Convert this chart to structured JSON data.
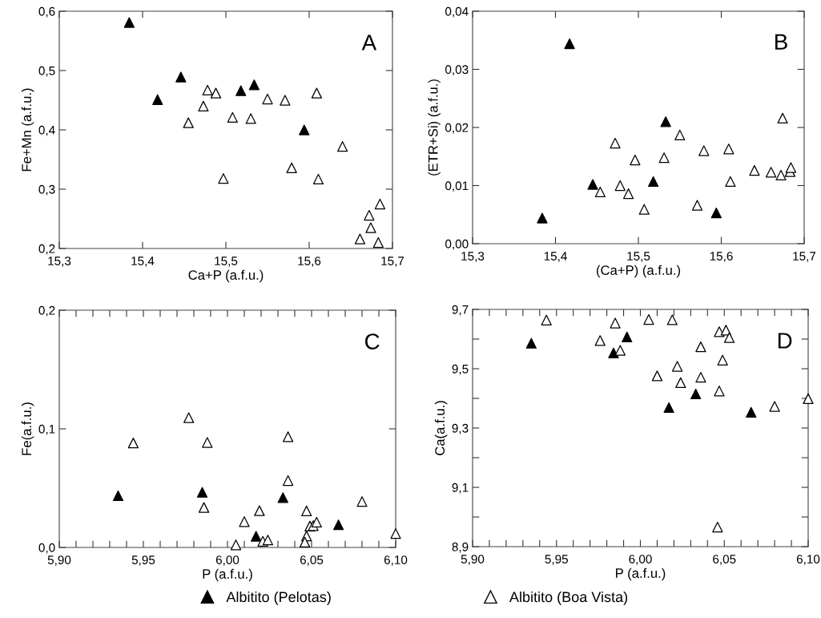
{
  "chart_data": [
    {
      "type": "scatter",
      "annotations": [
        "A"
      ],
      "xlabel": "Ca+P (a.f.u.)",
      "ylabel": "Fe+Mn (a.f.u.)",
      "marker": "triangle",
      "legend": "bottom",
      "xlim": [
        15.3,
        15.7
      ],
      "xticks": [
        {
          "value": 15.3,
          "label": "15,3"
        },
        {
          "value": 15.4,
          "label": "15,4"
        },
        {
          "value": 15.5,
          "label": "15,5"
        },
        {
          "value": 15.6,
          "label": "15,6"
        },
        {
          "value": 15.7,
          "label": "15,7"
        }
      ],
      "ylim": [
        0.2,
        0.6
      ],
      "yticks": [
        {
          "value": 0.2,
          "label": "0,2"
        },
        {
          "value": 0.3,
          "label": "0,3"
        },
        {
          "value": 0.4,
          "label": "0,4"
        },
        {
          "value": 0.5,
          "label": "0,5"
        },
        {
          "value": 0.6,
          "label": "0,6"
        }
      ],
      "series": [
        {
          "name": "Albitito (Pelotas)",
          "color": "#000000",
          "x": [
            15.384,
            15.418,
            15.446,
            15.518,
            15.534,
            15.594
          ],
          "values": [
            0.581,
            0.451,
            0.489,
            0.466,
            0.476,
            0.4
          ]
        },
        {
          "name": "Albitito (Boa Vista)",
          "color": "#ffffff",
          "x": [
            15.455,
            15.473,
            15.478,
            15.488,
            15.497,
            15.508,
            15.53,
            15.55,
            15.571,
            15.579,
            15.609,
            15.611,
            15.64,
            15.661,
            15.672,
            15.674,
            15.683,
            15.685
          ],
          "values": [
            0.412,
            0.44,
            0.467,
            0.462,
            0.318,
            0.421,
            0.419,
            0.452,
            0.45,
            0.336,
            0.462,
            0.317,
            0.372,
            0.216,
            0.256,
            0.235,
            0.21,
            0.275
          ]
        }
      ]
    },
    {
      "type": "scatter",
      "annotations": [
        "B"
      ],
      "xlabel": "(Ca+P) (a.f.u.)",
      "ylabel": "(ETR+Si) (a.f.u.)",
      "marker": "triangle",
      "legend": false,
      "xlim": [
        15.3,
        15.7
      ],
      "xticks": [
        {
          "value": 15.3,
          "label": "15,3"
        },
        {
          "value": 15.4,
          "label": "15,4"
        },
        {
          "value": 15.5,
          "label": "15,5"
        },
        {
          "value": 15.6,
          "label": "15,6"
        },
        {
          "value": 15.7,
          "label": "15,7"
        }
      ],
      "ylim": [
        0.0,
        0.04
      ],
      "yticks": [
        {
          "value": 0.0,
          "label": "0,00"
        },
        {
          "value": 0.01,
          "label": "0,01"
        },
        {
          "value": 0.02,
          "label": "0,02"
        },
        {
          "value": 0.03,
          "label": "0,03"
        },
        {
          "value": 0.04,
          "label": "0,04"
        }
      ],
      "series": [
        {
          "color": "#000000",
          "x": [
            15.384,
            15.417,
            15.445,
            15.518,
            15.533,
            15.594
          ],
          "values": [
            0.0044,
            0.0344,
            0.0102,
            0.0107,
            0.021,
            0.0053
          ]
        },
        {
          "color": "#ffffff",
          "x": [
            15.454,
            15.472,
            15.478,
            15.488,
            15.496,
            15.507,
            15.531,
            15.55,
            15.571,
            15.579,
            15.609,
            15.611,
            15.64,
            15.66,
            15.672,
            15.674,
            15.683,
            15.684
          ],
          "values": [
            0.0089,
            0.0173,
            0.01,
            0.0086,
            0.0144,
            0.0059,
            0.0148,
            0.0187,
            0.0066,
            0.016,
            0.0163,
            0.0107,
            0.0126,
            0.0123,
            0.0118,
            0.0216,
            0.0124,
            0.0131
          ]
        }
      ]
    },
    {
      "type": "scatter",
      "annotations": [
        "C"
      ],
      "xlabel": "P (a.f.u.)",
      "ylabel": "Fe(a.f.u.)",
      "marker": "triangle",
      "legend": false,
      "xlim": [
        5.9,
        6.1
      ],
      "xticks": [
        {
          "value": 5.9,
          "label": "5,90"
        },
        {
          "value": 5.91,
          "label": null
        },
        {
          "value": 5.92,
          "label": null
        },
        {
          "value": 5.93,
          "label": null
        },
        {
          "value": 5.94,
          "label": null
        },
        {
          "value": 5.95,
          "label": "5,95"
        },
        {
          "value": 5.96,
          "label": null
        },
        {
          "value": 5.97,
          "label": null
        },
        {
          "value": 5.98,
          "label": null
        },
        {
          "value": 5.99,
          "label": null
        },
        {
          "value": 6.0,
          "label": "6,00"
        },
        {
          "value": 6.01,
          "label": null
        },
        {
          "value": 6.02,
          "label": null
        },
        {
          "value": 6.03,
          "label": null
        },
        {
          "value": 6.04,
          "label": null
        },
        {
          "value": 6.05,
          "label": "6,05"
        },
        {
          "value": 6.06,
          "label": null
        },
        {
          "value": 6.07,
          "label": null
        },
        {
          "value": 6.08,
          "label": null
        },
        {
          "value": 6.09,
          "label": null
        },
        {
          "value": 6.1,
          "label": "6,10"
        }
      ],
      "ylim": [
        0.0,
        0.2
      ],
      "yticks": [
        {
          "value": 0.0,
          "label": "0,0"
        },
        {
          "value": 0.1,
          "label": "0,1"
        },
        {
          "value": 0.2,
          "label": "0,2"
        }
      ],
      "series": [
        {
          "color": "#000000",
          "x": [
            5.935,
            5.985,
            6.017,
            6.033,
            6.066
          ],
          "values": [
            0.0436,
            0.0465,
            0.0094,
            0.042,
            0.0191
          ]
        },
        {
          "color": "#ffffff",
          "x": [
            5.944,
            5.977,
            5.988,
            5.986,
            6.005,
            6.01,
            6.019,
            6.021,
            6.024,
            6.036,
            6.036,
            6.047,
            6.047,
            6.046,
            6.049,
            6.051,
            6.053,
            6.08,
            6.1
          ],
          "values": [
            0.0881,
            0.1094,
            0.0885,
            0.0337,
            0.0022,
            0.0218,
            0.031,
            0.0052,
            0.0063,
            0.0933,
            0.0564,
            0.0308,
            0.0097,
            0.0045,
            0.018,
            0.0184,
            0.0213,
            0.0387,
            0.0117
          ]
        }
      ]
    },
    {
      "type": "scatter",
      "annotations": [
        "D"
      ],
      "xlabel": "P (a.f.u.)",
      "ylabel": "Ca(a.f.u.)",
      "marker": "triangle",
      "xlim": [
        5.9,
        6.1
      ],
      "xticks": [
        {
          "value": 5.9,
          "label": "5,90"
        },
        {
          "value": 5.91,
          "label": null
        },
        {
          "value": 5.92,
          "label": null
        },
        {
          "value": 5.93,
          "label": null
        },
        {
          "value": 5.94,
          "label": null
        },
        {
          "value": 5.95,
          "label": "5,95"
        },
        {
          "value": 5.96,
          "label": null
        },
        {
          "value": 5.97,
          "label": null
        },
        {
          "value": 5.98,
          "label": null
        },
        {
          "value": 5.99,
          "label": null
        },
        {
          "value": 6.0,
          "label": "6,00"
        },
        {
          "value": 6.01,
          "label": null
        },
        {
          "value": 6.02,
          "label": null
        },
        {
          "value": 6.03,
          "label": null
        },
        {
          "value": 6.04,
          "label": null
        },
        {
          "value": 6.05,
          "label": "6,05"
        },
        {
          "value": 6.06,
          "label": null
        },
        {
          "value": 6.07,
          "label": null
        },
        {
          "value": 6.08,
          "label": null
        },
        {
          "value": 6.09,
          "label": null
        },
        {
          "value": 6.1,
          "label": "6,10"
        }
      ],
      "ylim": [
        8.9,
        9.7
      ],
      "yticks": [
        {
          "value": 8.9,
          "label": "8,9"
        },
        {
          "value": 9.0,
          "label": null
        },
        {
          "value": 9.1,
          "label": "9,1"
        },
        {
          "value": 9.2,
          "label": null
        },
        {
          "value": 9.3,
          "label": "9,3"
        },
        {
          "value": 9.4,
          "label": null
        },
        {
          "value": 9.5,
          "label": "9,5"
        },
        {
          "value": 9.6,
          "label": null
        },
        {
          "value": 9.7,
          "label": "9,7"
        }
      ],
      "series": [
        {
          "color": "#000000",
          "x": [
            5.935,
            5.984,
            5.992,
            6.017,
            6.033,
            6.066
          ],
          "values": [
            9.586,
            9.553,
            9.607,
            9.369,
            9.415,
            9.353
          ]
        },
        {
          "color": "#ffffff",
          "x": [
            5.944,
            5.976,
            5.985,
            5.988,
            6.005,
            6.01,
            6.019,
            6.022,
            6.024,
            6.036,
            6.036,
            6.047,
            6.051,
            6.053,
            6.049,
            6.047,
            6.046,
            6.08,
            6.1
          ],
          "values": [
            9.664,
            9.595,
            9.654,
            9.562,
            9.666,
            9.476,
            9.665,
            9.508,
            9.453,
            9.574,
            9.471,
            9.625,
            9.63,
            9.605,
            9.529,
            9.425,
            8.966,
            9.373,
            9.399
          ]
        }
      ]
    }
  ]
}
